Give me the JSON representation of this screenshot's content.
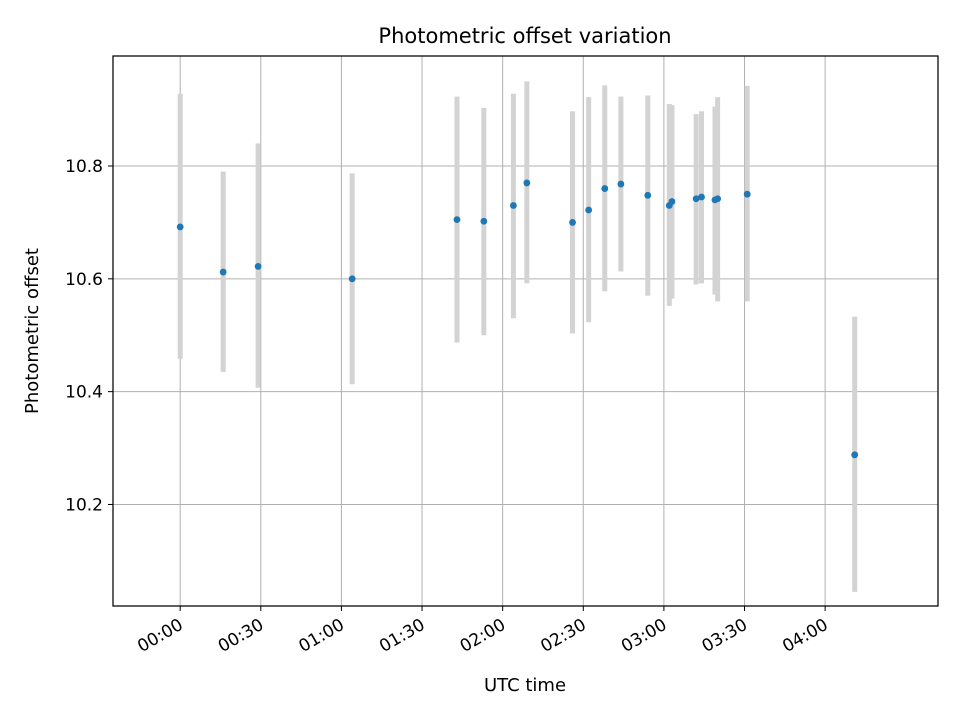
{
  "chart_data": {
    "type": "scatter",
    "title": "Photometric offset variation",
    "xlabel": "UTC time",
    "ylabel": "Photometric offset",
    "x_unit": "UTC time (HH:MM)",
    "xlim": [
      "23:35",
      "04:42"
    ],
    "ylim": [
      10.02,
      10.995
    ],
    "x_ticks": [
      "00:00",
      "00:30",
      "01:00",
      "01:30",
      "02:00",
      "02:30",
      "03:00",
      "03:30",
      "04:00"
    ],
    "y_ticks": [
      10.2,
      10.4,
      10.6,
      10.8
    ],
    "grid": true,
    "legend": "none",
    "errorbar_color": "#d3d3d3",
    "point_color": "#1f77b4",
    "series": [
      {
        "points": [
          {
            "x": "00:00",
            "y": 10.692,
            "ylow": 10.458,
            "yhigh": 10.928
          },
          {
            "x": "00:16",
            "y": 10.612,
            "ylow": 10.435,
            "yhigh": 10.79
          },
          {
            "x": "00:29",
            "y": 10.622,
            "ylow": 10.407,
            "yhigh": 10.84
          },
          {
            "x": "01:04",
            "y": 10.6,
            "ylow": 10.413,
            "yhigh": 10.787
          },
          {
            "x": "01:43",
            "y": 10.705,
            "ylow": 10.487,
            "yhigh": 10.923
          },
          {
            "x": "01:53",
            "y": 10.702,
            "ylow": 10.5,
            "yhigh": 10.903
          },
          {
            "x": "02:04",
            "y": 10.73,
            "ylow": 10.53,
            "yhigh": 10.928
          },
          {
            "x": "02:09",
            "y": 10.77,
            "ylow": 10.592,
            "yhigh": 10.95
          },
          {
            "x": "02:26",
            "y": 10.7,
            "ylow": 10.503,
            "yhigh": 10.897
          },
          {
            "x": "02:32",
            "y": 10.722,
            "ylow": 10.523,
            "yhigh": 10.922
          },
          {
            "x": "02:38",
            "y": 10.76,
            "ylow": 10.578,
            "yhigh": 10.943
          },
          {
            "x": "02:44",
            "y": 10.768,
            "ylow": 10.613,
            "yhigh": 10.923
          },
          {
            "x": "02:54",
            "y": 10.748,
            "ylow": 10.57,
            "yhigh": 10.925
          },
          {
            "x": "03:02",
            "y": 10.73,
            "ylow": 10.552,
            "yhigh": 10.91
          },
          {
            "x": "03:03",
            "y": 10.737,
            "ylow": 10.565,
            "yhigh": 10.908
          },
          {
            "x": "03:12",
            "y": 10.742,
            "ylow": 10.59,
            "yhigh": 10.892
          },
          {
            "x": "03:14",
            "y": 10.745,
            "ylow": 10.592,
            "yhigh": 10.897
          },
          {
            "x": "03:19",
            "y": 10.74,
            "ylow": 10.572,
            "yhigh": 10.905
          },
          {
            "x": "03:20",
            "y": 10.742,
            "ylow": 10.56,
            "yhigh": 10.922
          },
          {
            "x": "03:31",
            "y": 10.75,
            "ylow": 10.56,
            "yhigh": 10.942
          },
          {
            "x": "04:11",
            "y": 10.288,
            "ylow": 10.045,
            "yhigh": 10.533
          }
        ]
      }
    ]
  }
}
